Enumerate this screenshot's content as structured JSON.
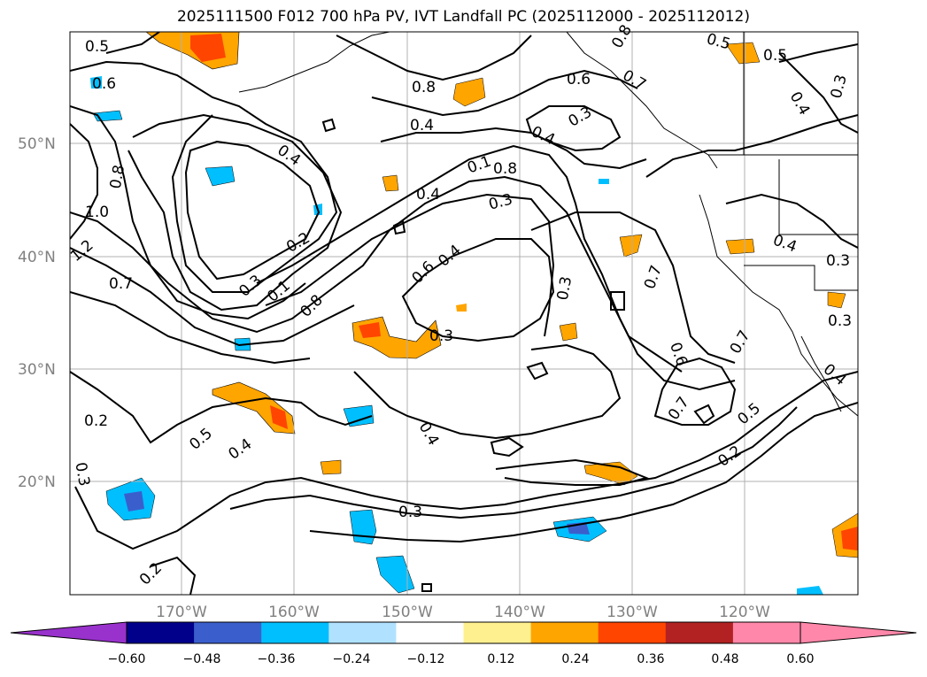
{
  "title": "2025111500 F012 700 hPa PV, IVT Landfall PC (2025112000 - 2025112012)",
  "map": {
    "lat_labels": [
      "50°N",
      "40°N",
      "30°N",
      "20°N"
    ],
    "lon_labels": [
      "170°W",
      "160°W",
      "150°W",
      "140°W",
      "130°W",
      "120°W"
    ],
    "contour_labels": [
      "0.5",
      "0.6",
      "0.8",
      "1.0",
      "1.2",
      "0.7",
      "0.4",
      "0.2",
      "0.3",
      "0.1",
      "0.8",
      "0.6",
      "0.4",
      "0.3",
      "0.3",
      "0.8",
      "0.4",
      "0.5",
      "0.8",
      "0.6",
      "0.7",
      "0.4",
      "0.3",
      "0.5",
      "0.3",
      "0.4",
      "0.4",
      "0.3",
      "0.7",
      "0.6",
      "0.7",
      "0.7",
      "0.5",
      "0.2",
      "0.3",
      "0.4",
      "0.4",
      "0.5",
      "0.2",
      "0.3",
      "0.3",
      "0.2",
      "0.1",
      "0.8",
      "0.3",
      "0.4",
      "0.4"
    ]
  },
  "colorbar": {
    "ticks": [
      "−0.60",
      "−0.48",
      "−0.36",
      "−0.24",
      "−0.12",
      "0.12",
      "0.24",
      "0.36",
      "0.48",
      "0.60"
    ],
    "colors": {
      "under": "#9932cc",
      "bins": [
        "#00008b",
        "#3a5fcd",
        "#00bfff",
        "#b0e2ff",
        "#ffffff",
        "#fff08f",
        "#ffa500",
        "#ff4500",
        "#b22222",
        "#ff88aa"
      ],
      "over": "#ff88aa"
    }
  }
}
